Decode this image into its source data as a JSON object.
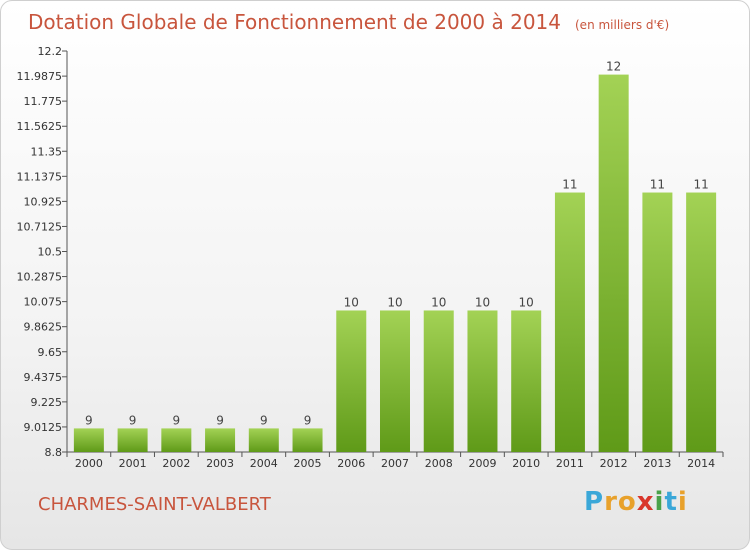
{
  "title": "Dotation Globale de Fonctionnement de 2000 à 2014",
  "unit_note": "(en milliers d'€)",
  "commune": "CHARMES-SAINT-VALBERT",
  "logo": {
    "letters": [
      "P",
      "r",
      "o",
      "x",
      "i",
      "t",
      "i"
    ],
    "colors": [
      "#3aa7d8",
      "#e8a12b",
      "#e8a12b",
      "#d9362b",
      "#4aa24a",
      "#3aa7d8",
      "#e8a12b"
    ]
  },
  "colors": {
    "bar_top": "#a3d255",
    "bar_bottom": "#5f9a18",
    "title": "#c8553d"
  },
  "chart_data": {
    "type": "bar",
    "title": "Dotation Globale de Fonctionnement de 2000 à 2014",
    "categories": [
      "2000",
      "2001",
      "2002",
      "2003",
      "2004",
      "2005",
      "2006",
      "2007",
      "2008",
      "2009",
      "2010",
      "2011",
      "2012",
      "2013",
      "2014"
    ],
    "values": [
      9,
      9,
      9,
      9,
      9,
      9,
      10,
      10,
      10,
      10,
      10,
      11,
      12,
      11,
      11
    ],
    "data_labels": [
      "9",
      "9",
      "9",
      "9",
      "9",
      "9",
      "10",
      "10",
      "10",
      "10",
      "10",
      "11",
      "12",
      "11",
      "11"
    ],
    "ylim": [
      8.8,
      12.2
    ],
    "yticks": [
      8.8,
      9.0125,
      9.225,
      9.4375,
      9.65,
      9.8625,
      10.075,
      10.2875,
      10.5,
      10.7125,
      10.925,
      11.1375,
      11.35,
      11.5625,
      11.775,
      11.9875,
      12.2
    ],
    "ytick_labels": [
      "8.8",
      "9.0125",
      "9.225",
      "9.4375",
      "9.65",
      "9.8625",
      "10.075",
      "10.2875",
      "10.5",
      "10.7125",
      "10.925",
      "11.1375",
      "11.35",
      "11.5625",
      "11.775",
      "11.9875",
      "12.2"
    ],
    "grid": false,
    "xlabel": "",
    "ylabel": ""
  }
}
